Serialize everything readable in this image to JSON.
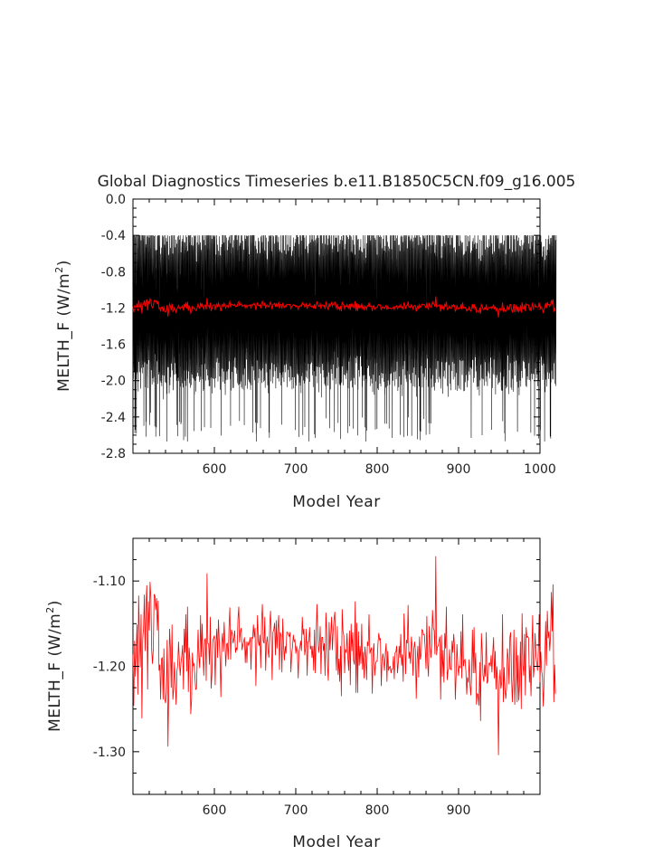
{
  "chart_data": [
    {
      "type": "line",
      "title": "Global Diagnostics Timeseries b.e11.B1850C5CN.f09_g16.005",
      "xlabel": "Model Year",
      "ylabel_main": "MELTH_F (W/m",
      "ylabel_sup": "2",
      "ylabel_close": ")",
      "xlim": [
        500,
        1000
      ],
      "ylim": [
        -2.8,
        0.0
      ],
      "x_ticks": [
        600,
        700,
        800,
        900,
        1000
      ],
      "x_tick_labels": [
        "600",
        "700",
        "800",
        "900",
        "1000"
      ],
      "y_ticks": [
        0.0,
        -0.4,
        -0.8,
        -1.2,
        -1.6,
        -2.0,
        -2.4,
        -2.8
      ],
      "y_tick_labels": [
        "0.0",
        "-0.4",
        "-0.8",
        "-1.2",
        "-1.6",
        "-2.0",
        "-2.4",
        "-2.8"
      ],
      "grid": false,
      "series": [
        {
          "color": "#000000",
          "description": "monthly values",
          "sampling": "monthly",
          "x_range": [
            500,
            1000
          ],
          "envelope_top": -0.5,
          "envelope_bottom": -2.3,
          "min": -2.67,
          "max": -0.4
        },
        {
          "color": "#ff0000",
          "description": "annual means",
          "values_ref": "annual_mean"
        }
      ]
    },
    {
      "type": "line",
      "xlabel": "Model Year",
      "ylabel_main": "MELTH_F (W/m",
      "ylabel_sup": "2",
      "ylabel_close": ")",
      "xlim": [
        500,
        1000
      ],
      "ylim": [
        -1.35,
        -1.05
      ],
      "x_ticks": [
        600,
        700,
        800,
        900
      ],
      "x_tick_labels": [
        "600",
        "700",
        "800",
        "900"
      ],
      "y_ticks": [
        -1.1,
        -1.2,
        -1.3
      ],
      "y_tick_labels": [
        "-1.10",
        "-1.20",
        "-1.30"
      ],
      "grid": false,
      "series": [
        {
          "color": "#ff0000",
          "values_ref": "annual_mean"
        }
      ]
    }
  ],
  "annual_mean": {
    "x_start": 500,
    "x_step": 1,
    "values": [
      -1.186,
      -1.246,
      -1.17,
      -1.212,
      -1.181,
      -1.151,
      -1.233,
      -1.117,
      -1.165,
      -1.201,
      -1.139,
      -1.261,
      -1.168,
      -1.155,
      -1.116,
      -1.182,
      -1.127,
      -1.105,
      -1.227,
      -1.124,
      -1.158,
      -1.101,
      -1.12,
      -1.181,
      -1.197,
      -1.179,
      -1.116,
      -1.117,
      -1.134,
      -1.12,
      -1.158,
      -1.123,
      -1.205,
      -1.198,
      -1.239,
      -1.191,
      -1.19,
      -1.239,
      -1.179,
      -1.238,
      -1.243,
      -1.231,
      -1.169,
      -1.294,
      -1.225,
      -1.156,
      -1.178,
      -1.225,
      -1.151,
      -1.239,
      -1.227,
      -1.195,
      -1.217,
      -1.245,
      -1.206,
      -1.198,
      -1.171,
      -1.193,
      -1.211,
      -1.196,
      -1.188,
      -1.175,
      -1.227,
      -1.156,
      -1.184,
      -1.139,
      -1.206,
      -1.13,
      -1.23,
      -1.178,
      -1.193,
      -1.256,
      -1.239,
      -1.184,
      -1.199,
      -1.197,
      -1.21,
      -1.227,
      -1.226,
      -1.192,
      -1.157,
      -1.189,
      -1.202,
      -1.14,
      -1.189,
      -1.15,
      -1.186,
      -1.211,
      -1.17,
      -1.167,
      -1.217,
      -1.091,
      -1.173,
      -1.174,
      -1.198,
      -1.142,
      -1.226,
      -1.209,
      -1.171,
      -1.167,
      -1.164,
      -1.222,
      -1.172,
      -1.156,
      -1.19,
      -1.145,
      -1.17,
      -1.192,
      -1.236,
      -1.173,
      -1.161,
      -1.183,
      -1.148,
      -1.172,
      -1.2,
      -1.174,
      -1.173,
      -1.192,
      -1.154,
      -1.131,
      -1.192,
      -1.157,
      -1.162,
      -1.173,
      -1.168,
      -1.158,
      -1.184,
      -1.178,
      -1.181,
      -1.144,
      -1.13,
      -1.172,
      -1.159,
      -1.155,
      -1.181,
      -1.175,
      -1.171,
      -1.166,
      -1.196,
      -1.171,
      -1.196,
      -1.171,
      -1.175,
      -1.172,
      -1.166,
      -1.204,
      -1.166,
      -1.167,
      -1.151,
      -1.166,
      -1.155,
      -1.223,
      -1.18,
      -1.14,
      -1.171,
      -1.176,
      -1.163,
      -1.202,
      -1.147,
      -1.127,
      -1.17,
      -1.173,
      -1.142,
      -1.205,
      -1.173,
      -1.165,
      -1.182,
      -1.19,
      -1.152,
      -1.135,
      -1.17,
      -1.216,
      -1.16,
      -1.157,
      -1.149,
      -1.187,
      -1.146,
      -1.179,
      -1.156,
      -1.14,
      -1.204,
      -1.16,
      -1.164,
      -1.207,
      -1.144,
      -1.176,
      -1.193,
      -1.176,
      -1.185,
      -1.16,
      -1.16,
      -1.163,
      -1.165,
      -1.16,
      -1.207,
      -1.186,
      -1.177,
      -1.163,
      -1.171,
      -1.169,
      -1.185,
      -1.176,
      -1.184,
      -1.214,
      -1.182,
      -1.178,
      -1.17,
      -1.182,
      -1.142,
      -1.163,
      -1.156,
      -1.187,
      -1.179,
      -1.156,
      -1.211,
      -1.171,
      -1.171,
      -1.154,
      -1.18,
      -1.176,
      -1.19,
      -1.176,
      -1.205,
      -1.157,
      -1.208,
      -1.166,
      -1.127,
      -1.159,
      -1.184,
      -1.176,
      -1.153,
      -1.209,
      -1.166,
      -1.166,
      -1.182,
      -1.173,
      -1.211,
      -1.137,
      -1.159,
      -1.2,
      -1.217,
      -1.148,
      -1.181,
      -1.163,
      -1.142,
      -1.181,
      -1.158,
      -1.145,
      -1.136,
      -1.18,
      -1.205,
      -1.153,
      -1.21,
      -1.191,
      -1.218,
      -1.176,
      -1.235,
      -1.133,
      -1.159,
      -1.164,
      -1.208,
      -1.18,
      -1.184,
      -1.161,
      -1.19,
      -1.205,
      -1.158,
      -1.222,
      -1.15,
      -1.182,
      -1.16,
      -1.193,
      -1.198,
      -1.124,
      -1.231,
      -1.149,
      -1.231,
      -1.159,
      -1.199,
      -1.176,
      -1.197,
      -1.15,
      -1.204,
      -1.183,
      -1.214,
      -1.177,
      -1.189,
      -1.216,
      -1.171,
      -1.176,
      -1.139,
      -1.185,
      -1.181,
      -1.178,
      -1.232,
      -1.183,
      -1.173,
      -1.211,
      -1.197,
      -1.194,
      -1.194,
      -1.173,
      -1.161,
      -1.169,
      -1.167,
      -1.223,
      -1.193,
      -1.185,
      -1.193,
      -1.205,
      -1.184,
      -1.173,
      -1.218,
      -1.182,
      -1.205,
      -1.201,
      -1.2,
      -1.208,
      -1.203,
      -1.203,
      -1.188,
      -1.215,
      -1.184,
      -1.183,
      -1.176,
      -1.208,
      -1.195,
      -1.176,
      -1.19,
      -1.162,
      -1.199,
      -1.186,
      -1.218,
      -1.138,
      -1.168,
      -1.209,
      -1.169,
      -1.173,
      -1.128,
      -1.191,
      -1.183,
      -1.197,
      -1.165,
      -1.177,
      -1.211,
      -1.18,
      -1.171,
      -1.182,
      -1.238,
      -1.193,
      -1.176,
      -1.213,
      -1.165,
      -1.192,
      -1.187,
      -1.157,
      -1.158,
      -1.163,
      -1.163,
      -1.179,
      -1.203,
      -1.141,
      -1.197,
      -1.212,
      -1.153,
      -1.17,
      -1.19,
      -1.175,
      -1.134,
      -1.155,
      -1.158,
      -1.186,
      -1.071,
      -1.187,
      -1.177,
      -1.176,
      -1.17,
      -1.165,
      -1.239,
      -1.163,
      -1.212,
      -1.181,
      -1.219,
      -1.161,
      -1.179,
      -1.13,
      -1.216,
      -1.205,
      -1.203,
      -1.18,
      -1.203,
      -1.204,
      -1.17,
      -1.184,
      -1.162,
      -1.176,
      -1.239,
      -1.21,
      -1.174,
      -1.198,
      -1.211,
      -1.2,
      -1.202,
      -1.159,
      -1.214,
      -1.139,
      -1.2,
      -1.193,
      -1.192,
      -1.206,
      -1.233,
      -1.213,
      -1.219,
      -1.192,
      -1.221,
      -1.234,
      -1.211,
      -1.157,
      -1.208,
      -1.154,
      -1.208,
      -1.184,
      -1.245,
      -1.232,
      -1.233,
      -1.246,
      -1.195,
      -1.264,
      -1.161,
      -1.181,
      -1.211,
      -1.218,
      -1.198,
      -1.212,
      -1.16,
      -1.22,
      -1.217,
      -1.197,
      -1.196,
      -1.2,
      -1.187,
      -1.207,
      -1.184,
      -1.166,
      -1.214,
      -1.182,
      -1.227,
      -1.2,
      -1.216,
      -1.304,
      -1.223,
      -1.204,
      -1.226,
      -1.219,
      -1.139,
      -1.242,
      -1.201,
      -1.227,
      -1.238,
      -1.224,
      -1.179,
      -1.192,
      -1.221,
      -1.166,
      -1.16,
      -1.21,
      -1.242,
      -1.213,
      -1.157,
      -1.245,
      -1.212,
      -1.166,
      -1.242,
      -1.187,
      -1.24,
      -1.219,
      -1.171,
      -1.25,
      -1.138,
      -1.198,
      -1.211,
      -1.162,
      -1.234,
      -1.154,
      -1.166,
      -1.165,
      -1.167,
      -1.219,
      -1.199,
      -1.235,
      -1.183,
      -1.14,
      -1.213,
      -1.201,
      -1.161,
      -1.187,
      -1.196,
      -1.205,
      -1.181,
      -1.139,
      -1.219,
      -1.183,
      -1.205,
      -1.212,
      -1.247,
      -1.218,
      -1.189,
      -1.147,
      -1.199,
      -1.135,
      -1.167,
      -1.159,
      -1.182,
      -1.164,
      -1.113,
      -1.159,
      -1.104,
      -1.242,
      -1.198,
      -1.232
    ]
  }
}
